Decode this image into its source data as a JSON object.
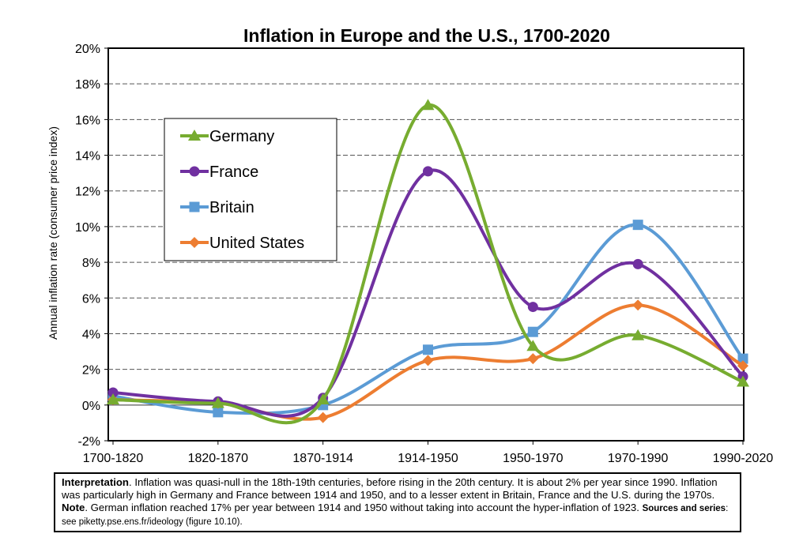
{
  "chart_data": {
    "type": "line",
    "title": "Inflation in Europe and the U.S., 1700-2020",
    "xlabel": "",
    "ylabel": "Annual inflation rate (consumer price index)",
    "categories": [
      "1700-1820",
      "1820-1870",
      "1870-1914",
      "1914-1950",
      "1950-1970",
      "1970-1990",
      "1990-2020"
    ],
    "ylim": [
      -2,
      20
    ],
    "yticks": [
      -2,
      0,
      2,
      4,
      6,
      8,
      10,
      12,
      14,
      16,
      18,
      20
    ],
    "ytick_labels": [
      "-2%",
      "0%",
      "2%",
      "4%",
      "6%",
      "8%",
      "10%",
      "12%",
      "14%",
      "16%",
      "18%",
      "20%"
    ],
    "grid": "horizontal dashed",
    "legend_position": "upper-left inside",
    "series": [
      {
        "name": "Germany",
        "color": "#77ac30",
        "marker": "triangle",
        "values": [
          0.3,
          0.1,
          0.3,
          16.8,
          3.3,
          3.9,
          1.3
        ]
      },
      {
        "name": "France",
        "color": "#7030a0",
        "marker": "circle",
        "values": [
          0.7,
          0.2,
          0.4,
          13.1,
          5.5,
          7.9,
          1.6
        ]
      },
      {
        "name": "Britain",
        "color": "#5b9bd5",
        "marker": "square",
        "values": [
          0.5,
          -0.4,
          0.0,
          3.1,
          4.1,
          10.1,
          2.6
        ]
      },
      {
        "name": "United States",
        "color": "#ed7d31",
        "marker": "diamond",
        "values": [
          0.3,
          0.1,
          -0.7,
          2.5,
          2.6,
          5.6,
          2.2
        ]
      }
    ]
  },
  "note": {
    "lead_bold": "Interpretation",
    "text1": ". Inflation was quasi-null in the 18th-19th centuries, before rising in the 20th century. It is about 2% per year since 1990. Inflation was particularly high in Germany and France between 1914 and 1950, and to a lesser extent in Britain, France and the U.S. during the 1970s. ",
    "note_bold": "Note",
    "text2": ". German inflation reached 17% per year between 1914 and 1950 without taking into account the hyper-inflation of 1923.  ",
    "sources_bold": "Sources and series",
    "sources_text": ": see piketty.pse.ens.fr/ideology (figure 10.10)."
  }
}
